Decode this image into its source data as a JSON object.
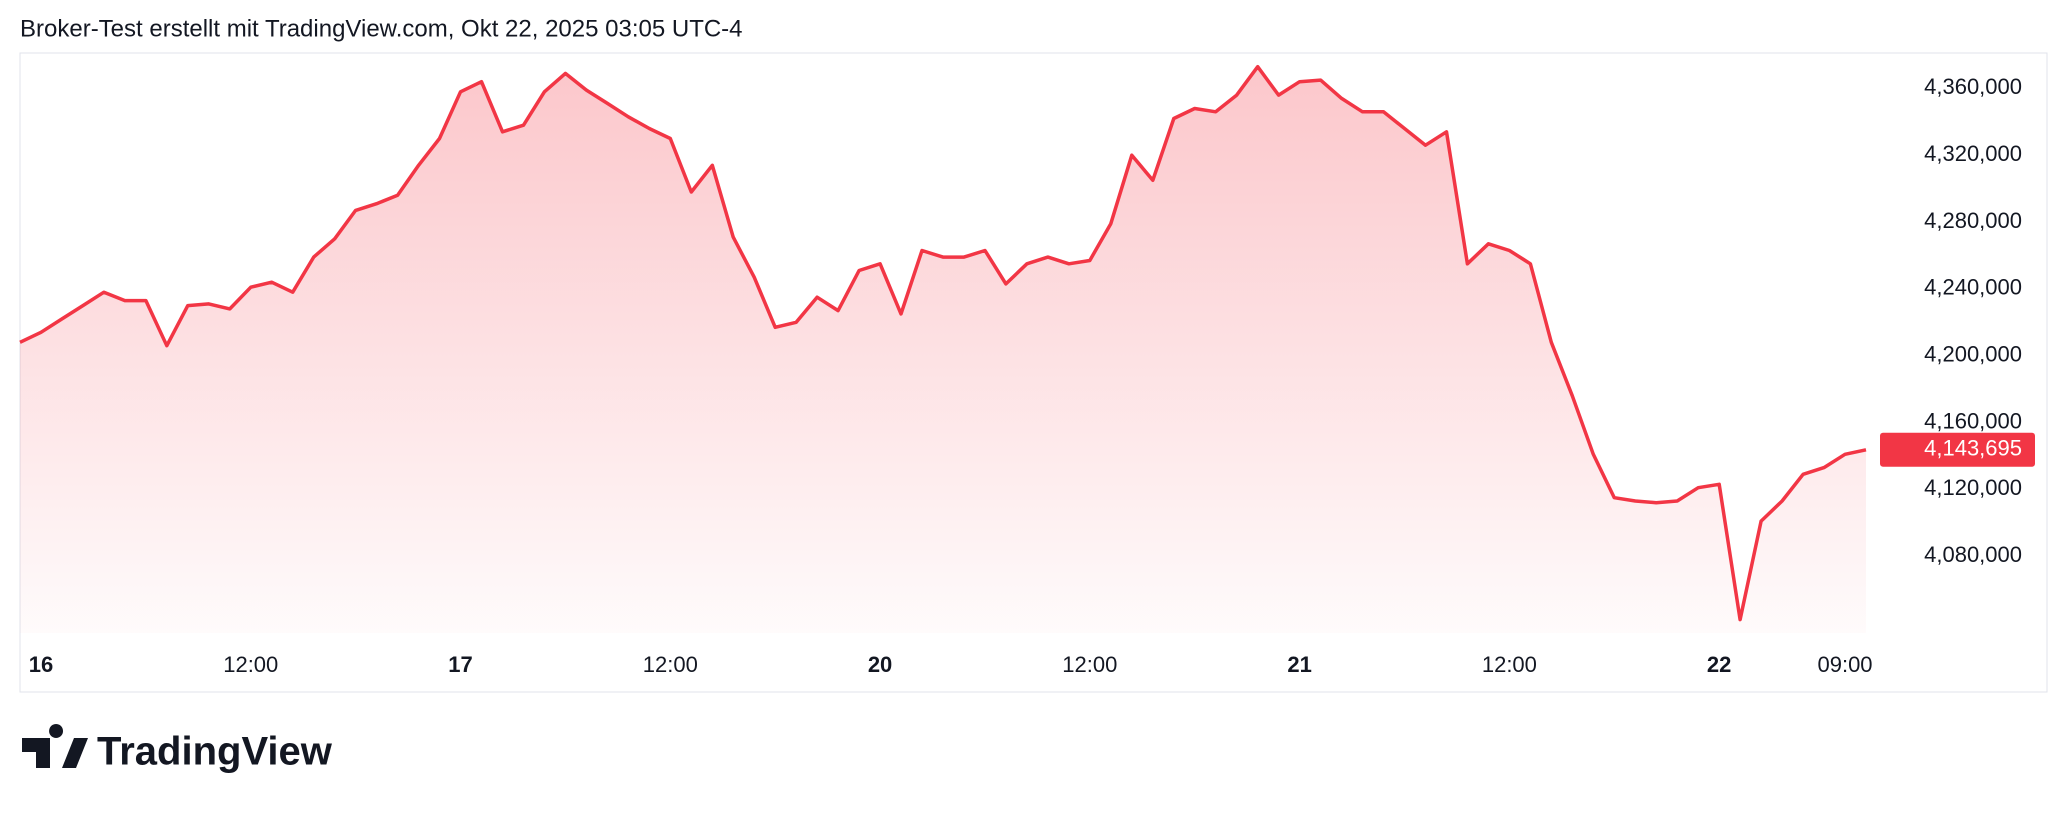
{
  "chart_data": {
    "type": "area",
    "title": "Broker-Test erstellt mit TradingView.com, Okt 22, 2025 03:05 UTC-4",
    "brand": "TradingView",
    "categories": [
      null,
      "16",
      null,
      null,
      null,
      null,
      null,
      null,
      null,
      null,
      null,
      "12:00",
      null,
      null,
      null,
      null,
      null,
      null,
      null,
      null,
      null,
      "17",
      null,
      null,
      null,
      null,
      null,
      null,
      null,
      null,
      null,
      "12:00",
      null,
      null,
      null,
      null,
      null,
      null,
      null,
      null,
      null,
      "20",
      null,
      null,
      null,
      null,
      null,
      null,
      null,
      null,
      null,
      "12:00",
      null,
      null,
      null,
      null,
      null,
      null,
      null,
      null,
      null,
      "21",
      null,
      null,
      null,
      null,
      null,
      null,
      null,
      null,
      null,
      "12:00",
      null,
      null,
      null,
      null,
      null,
      null,
      null,
      null,
      null,
      "22",
      null,
      null,
      null,
      null,
      null,
      "09:00",
      null
    ],
    "series": [
      {
        "color": "#f23645",
        "values": [
          4208000,
          4214000,
          4222000,
          4230000,
          4238000,
          4233000,
          4233000,
          4206000,
          4230000,
          4231000,
          4228000,
          4241000,
          4244000,
          4238000,
          4259000,
          4270000,
          4287000,
          4291000,
          4296000,
          4314000,
          4330000,
          4358000,
          4364000,
          4334000,
          4338000,
          4358000,
          4369000,
          4359000,
          4351000,
          4343000,
          4336000,
          4330000,
          4298000,
          4314000,
          4271000,
          4247000,
          4217000,
          4220000,
          4235000,
          4227000,
          4251000,
          4255000,
          4225000,
          4263000,
          4259000,
          4259000,
          4263000,
          4243000,
          4255000,
          4259000,
          4255000,
          4257000,
          4279000,
          4320000,
          4305000,
          4342000,
          4348000,
          4346000,
          4356000,
          4373000,
          4356000,
          4364000,
          4365000,
          4354000,
          4346000,
          4346000,
          4336000,
          4326000,
          4334000,
          4255000,
          4267000,
          4263000,
          4255000,
          4208000,
          4176000,
          4141000,
          4115000,
          4113000,
          4112000,
          4113000,
          4121000,
          4123000,
          4042000,
          4101000,
          4113000,
          4129000,
          4133000,
          4141000,
          4143695
        ]
      }
    ],
    "last_value_label": {
      "value": 4143695,
      "label": "4,143,695"
    },
    "ylim": [
      4034000,
      4380000
    ],
    "yticks": [
      {
        "value": 4080000,
        "label": "4,080,000"
      },
      {
        "value": 4120000,
        "label": "4,120,000"
      },
      {
        "value": 4160000,
        "label": "4,160,000"
      },
      {
        "value": 4200000,
        "label": "4,200,000"
      },
      {
        "value": 4240000,
        "label": "4,240,000"
      },
      {
        "value": 4280000,
        "label": "4,280,000"
      },
      {
        "value": 4320000,
        "label": "4,320,000"
      },
      {
        "value": 4360000,
        "label": "4,360,000"
      }
    ]
  }
}
